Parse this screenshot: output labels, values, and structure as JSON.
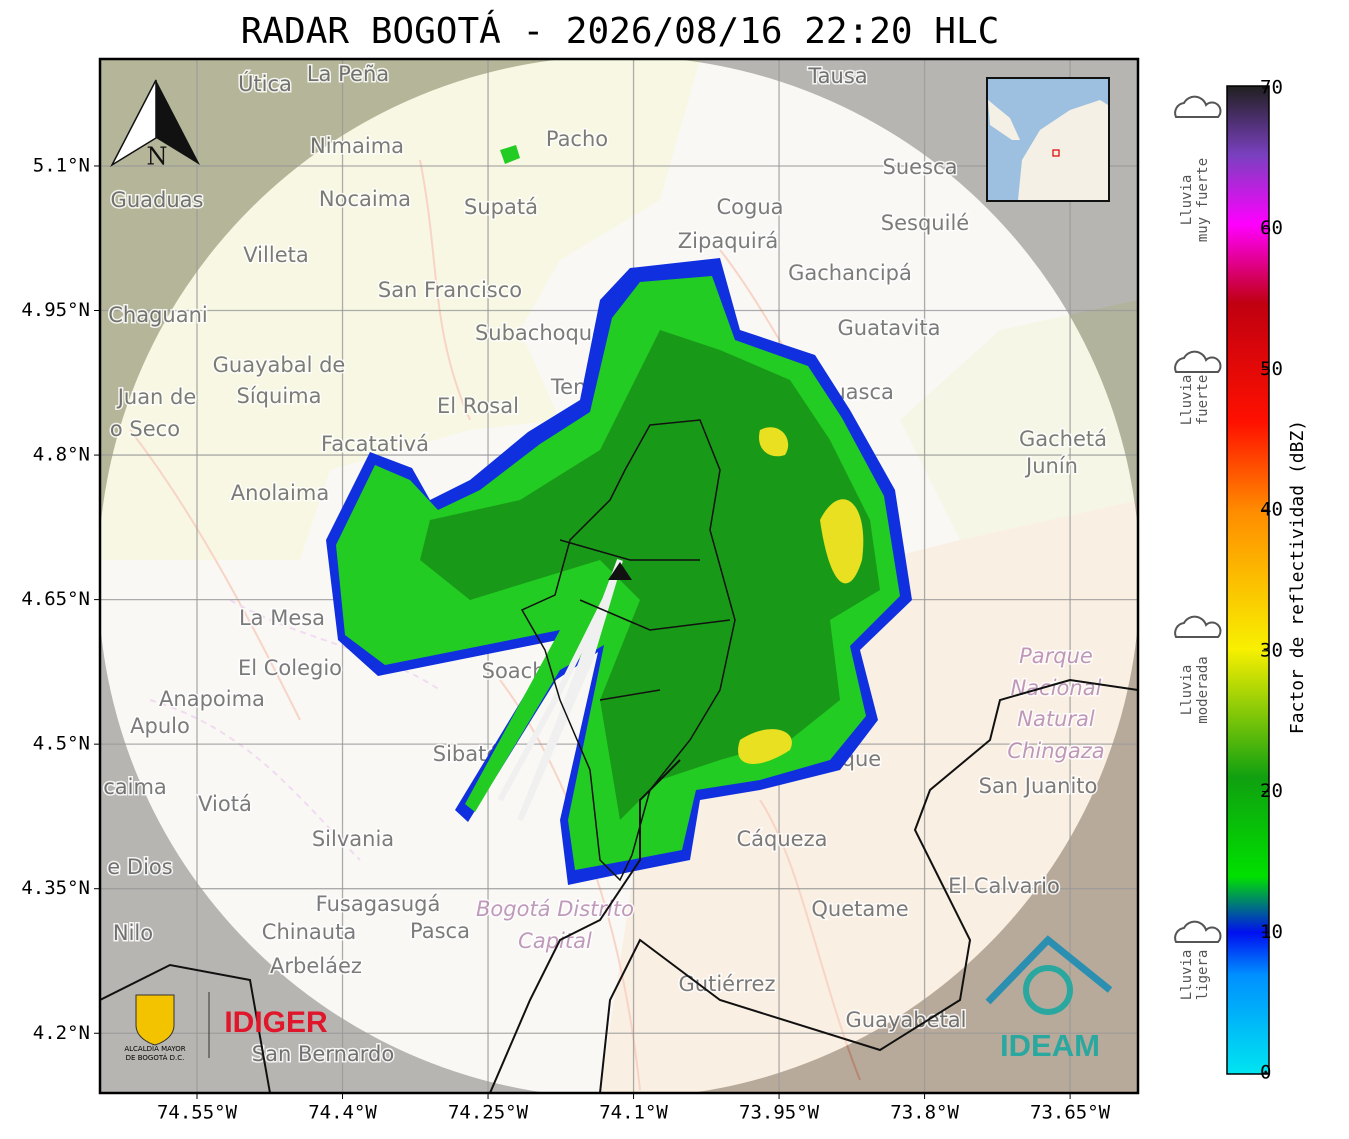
{
  "header": {
    "title": "RADAR BOGOTÁ - 2026/08/16 22:20 HLC"
  },
  "map": {
    "xlim": [
      -74.65,
      -73.58
    ],
    "ylim": [
      4.138,
      5.211
    ],
    "xticks": [
      {
        "value": -74.55,
        "label": "74.55°W"
      },
      {
        "value": -74.4,
        "label": "74.4°W"
      },
      {
        "value": -74.25,
        "label": "74.25°W"
      },
      {
        "value": -74.1,
        "label": "74.1°W"
      },
      {
        "value": -73.95,
        "label": "73.95°W"
      },
      {
        "value": -73.8,
        "label": "73.8°W"
      },
      {
        "value": -73.65,
        "label": "73.65°W"
      }
    ],
    "yticks": [
      {
        "value": 5.1,
        "label": "5.1°N"
      },
      {
        "value": 4.95,
        "label": "4.95°N"
      },
      {
        "value": 4.8,
        "label": "4.8°N"
      },
      {
        "value": 4.65,
        "label": "4.65°N"
      },
      {
        "value": 4.5,
        "label": "4.5°N"
      },
      {
        "value": 4.35,
        "label": "4.35°N"
      },
      {
        "value": 4.2,
        "label": "4.2°N"
      }
    ],
    "north": "N",
    "places": [
      "Útica",
      "La Peña",
      "Tausa",
      "Pacho",
      "Nimaima",
      "Guaduas",
      "Nocaima",
      "Supatá",
      "Cogua",
      "Suesca",
      "Sesquilé",
      "Zipaquirá",
      "Villeta",
      "Gachancipá",
      "San Francisco",
      "Chaguani",
      "Guatavita",
      "Subachoque",
      "Guayabal de",
      "Síquima",
      "Tenjo",
      "Guasca",
      "Juan de",
      "El Rosal",
      "o Seco",
      "Gachetá",
      "Junín",
      "Facatativá",
      "Anolaima",
      "La Mesa",
      "El Colegio",
      "Soacha",
      "Anapoima",
      "Apulo",
      "San Juanito",
      "Sibaté",
      "caima",
      "Viotá",
      "Silvania",
      "Cáqueza",
      "e Dios",
      "El Calvario",
      "Fusagasugá",
      "Quetame",
      "Nilo",
      "Chinauta",
      "Pasca",
      "Arbeláez",
      "Gutiérrez",
      "Guayabetal",
      "San Bernardo",
      "eque"
    ],
    "areas": [
      "Parque",
      "Nacional",
      "Natural",
      "Chingaza",
      "Bogotá Distrito",
      "Capital"
    ]
  },
  "colorbar": {
    "label": "Factor de reflectividad (dBZ)",
    "lim": [
      0,
      70
    ],
    "ticks": [
      0,
      10,
      20,
      30,
      40,
      50,
      60,
      70
    ],
    "categories": [
      [
        "Lluvia",
        "muy fuerte"
      ],
      [
        "Lluvia",
        "fuerte"
      ],
      [
        "Lluvia",
        "moderada"
      ],
      [
        "Lluvia",
        "ligera"
      ]
    ]
  },
  "logos": {
    "city": [
      "ALCALDÍA MAYOR",
      "DE BOGOTÁ D.C."
    ],
    "idiger": "IDIGER",
    "ideam": "IDEAM"
  }
}
